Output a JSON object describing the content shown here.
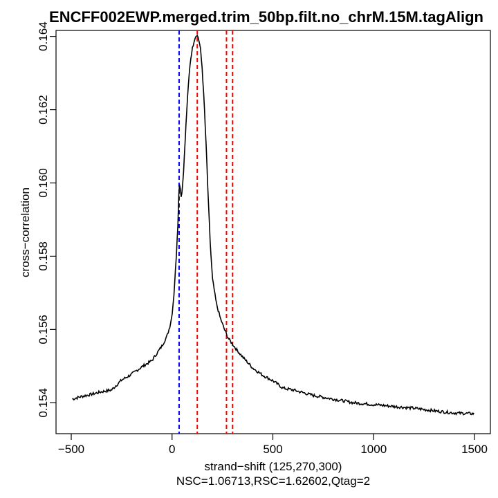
{
  "chart_data": {
    "type": "line",
    "title": "ENCFF002EWP.merged.trim_50bp.filt.no_chrM.15M.tagAlign",
    "xlabel": "strand−shift (125,270,300)",
    "xlabel2": "NSC=1.06713,RSC=1.62602,Qtag=2",
    "ylabel": "cross−correlation",
    "xlim": [
      -500,
      1500
    ],
    "ylim": [
      0.15325,
      0.16405
    ],
    "x_ticks": [
      -500,
      0,
      500,
      1000,
      1500
    ],
    "x_tick_labels": [
      "−500",
      "0",
      "500",
      "1000",
      "1500"
    ],
    "y_ticks": [
      0.154,
      0.156,
      0.158,
      0.16,
      0.162,
      0.164
    ],
    "y_tick_labels": [
      "0.154",
      "0.156",
      "0.158",
      "0.160",
      "0.162",
      "0.164"
    ],
    "grid": false,
    "vlines": [
      {
        "x": 35,
        "color": "#0000ff",
        "style": "dashed"
      },
      {
        "x": 125,
        "color": "#ff0000",
        "style": "dashed"
      },
      {
        "x": 270,
        "color": "#ff0000",
        "style": "dashed"
      },
      {
        "x": 300,
        "color": "#ff0000",
        "style": "dashed"
      }
    ],
    "series": [
      {
        "color": "#000000",
        "points": [
          [
            -495,
            0.1541
          ],
          [
            -450,
            0.15417
          ],
          [
            -400,
            0.15423
          ],
          [
            -350,
            0.1543
          ],
          [
            -300,
            0.15435
          ],
          [
            -250,
            0.15462
          ],
          [
            -200,
            0.15478
          ],
          [
            -150,
            0.15498
          ],
          [
            -100,
            0.15515
          ],
          [
            -75,
            0.15535
          ],
          [
            -50,
            0.15555
          ],
          [
            -25,
            0.15582
          ],
          [
            -10,
            0.1561
          ],
          [
            0,
            0.1564
          ],
          [
            10,
            0.157
          ],
          [
            20,
            0.1579
          ],
          [
            30,
            0.159
          ],
          [
            35,
            0.16005
          ],
          [
            40,
            0.1599
          ],
          [
            45,
            0.15965
          ],
          [
            50,
            0.15975
          ],
          [
            60,
            0.1606
          ],
          [
            70,
            0.1617
          ],
          [
            80,
            0.1626
          ],
          [
            90,
            0.1633
          ],
          [
            100,
            0.16365
          ],
          [
            110,
            0.1639
          ],
          [
            120,
            0.16405
          ],
          [
            130,
            0.16398
          ],
          [
            140,
            0.1637
          ],
          [
            150,
            0.1631
          ],
          [
            160,
            0.1621
          ],
          [
            170,
            0.1609
          ],
          [
            180,
            0.1595
          ],
          [
            190,
            0.1583
          ],
          [
            200,
            0.1574
          ],
          [
            220,
            0.1567
          ],
          [
            240,
            0.1563
          ],
          [
            260,
            0.156
          ],
          [
            280,
            0.15575
          ],
          [
            300,
            0.1556
          ],
          [
            320,
            0.15545
          ],
          [
            350,
            0.15525
          ],
          [
            400,
            0.15495
          ],
          [
            450,
            0.15475
          ],
          [
            500,
            0.1546
          ],
          [
            550,
            0.1544
          ],
          [
            600,
            0.15435
          ],
          [
            700,
            0.1542
          ],
          [
            800,
            0.1541
          ],
          [
            900,
            0.154
          ],
          [
            1000,
            0.15395
          ],
          [
            1100,
            0.1539
          ],
          [
            1200,
            0.15385
          ],
          [
            1300,
            0.15378
          ],
          [
            1400,
            0.15372
          ],
          [
            1500,
            0.1537
          ]
        ]
      }
    ]
  }
}
